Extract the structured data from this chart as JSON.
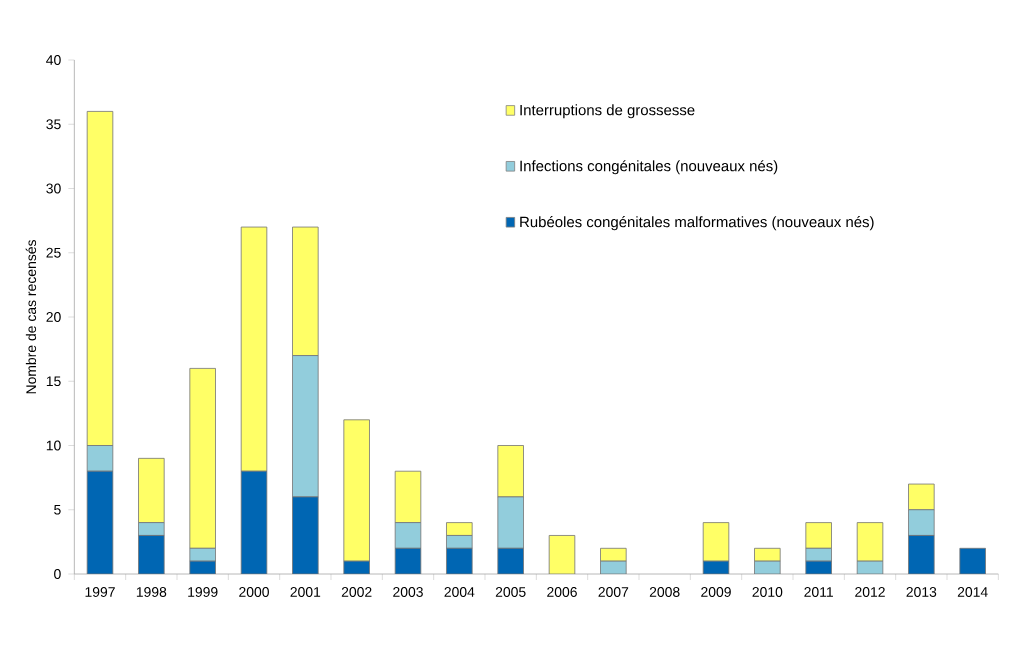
{
  "chart_data": {
    "type": "bar",
    "stacked": true,
    "ylabel": "Nombre de cas recensés",
    "categories": [
      "1997",
      "1998",
      "1999",
      "2000",
      "2001",
      "2002",
      "2003",
      "2004",
      "2005",
      "2006",
      "2007",
      "2008",
      "2009",
      "2010",
      "2011",
      "2012",
      "2013",
      "2014"
    ],
    "series": [
      {
        "name": "Rubéoles congénitales malformatives (nouveaux nés)",
        "color": "#0066b3",
        "values": [
          8,
          3,
          1,
          8,
          6,
          1,
          2,
          2,
          2,
          0,
          0,
          0,
          1,
          0,
          1,
          0,
          3,
          2
        ]
      },
      {
        "name": "Infections congénitales (nouveaux nés)",
        "color": "#92cddc",
        "values": [
          2,
          1,
          1,
          0,
          11,
          0,
          2,
          1,
          4,
          0,
          1,
          0,
          0,
          1,
          1,
          1,
          2,
          0
        ]
      },
      {
        "name": "Interruptions de grossesse",
        "color": "#ffff66",
        "values": [
          26,
          5,
          14,
          19,
          10,
          11,
          4,
          1,
          4,
          3,
          1,
          0,
          3,
          1,
          2,
          3,
          2,
          0
        ]
      }
    ],
    "ylim": [
      0,
      40
    ],
    "yticks": [
      0,
      5,
      10,
      15,
      20,
      25,
      30,
      35,
      40
    ],
    "grid": false,
    "legend": "top right"
  }
}
